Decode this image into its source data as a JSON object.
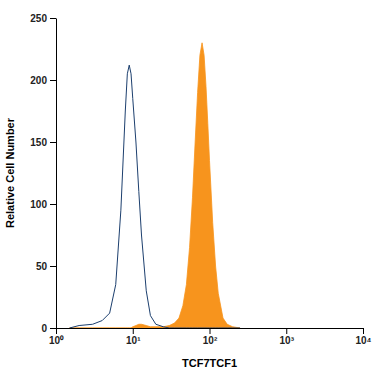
{
  "chart_data": {
    "type": "area",
    "x_label": "TCF7TCF1",
    "y_label": "Relative Cell Number",
    "log": "x",
    "grid": false,
    "x": [
      1.5,
      2,
      3,
      4,
      5,
      6,
      7,
      8,
      8.5,
      9,
      9.5,
      10,
      11,
      12,
      13,
      15,
      17,
      20,
      25,
      30,
      35,
      40,
      45,
      50,
      55,
      60,
      65,
      70,
      75,
      80,
      85,
      90,
      95,
      100,
      110,
      120,
      130,
      150,
      170,
      200,
      250
    ],
    "series": [
      {
        "type": "area",
        "color": "#f7941d",
        "values": [
          0,
          0,
          0,
          0,
          0,
          0,
          0,
          0,
          0,
          0,
          0,
          1,
          2,
          3,
          3,
          2,
          1,
          1,
          1,
          2,
          4,
          8,
          18,
          35,
          65,
          105,
          150,
          190,
          220,
          230,
          220,
          195,
          165,
          135,
          85,
          50,
          28,
          8,
          3,
          1,
          0
        ]
      },
      {
        "type": "line",
        "color": "#1c3f6e",
        "values": [
          0,
          2,
          3,
          6,
          12,
          35,
          95,
          175,
          205,
          212,
          205,
          185,
          150,
          110,
          75,
          30,
          10,
          3,
          1,
          0,
          0,
          0,
          0,
          0,
          0,
          0,
          0,
          0,
          0,
          0,
          0,
          0,
          0,
          0,
          0,
          0,
          0,
          0,
          0,
          0,
          0
        ]
      }
    ],
    "xlim": [
      1,
      10000
    ],
    "xticks": [
      {
        "value": 1,
        "label": "10⁰"
      },
      {
        "value": 10,
        "label": "10¹"
      },
      {
        "value": 100,
        "label": "10²"
      },
      {
        "value": 1000,
        "label": "10³"
      },
      {
        "value": 10000,
        "label": "10⁴"
      }
    ],
    "ylim": [
      0,
      250
    ],
    "yticks": [
      0,
      50,
      100,
      150,
      200,
      250
    ]
  }
}
